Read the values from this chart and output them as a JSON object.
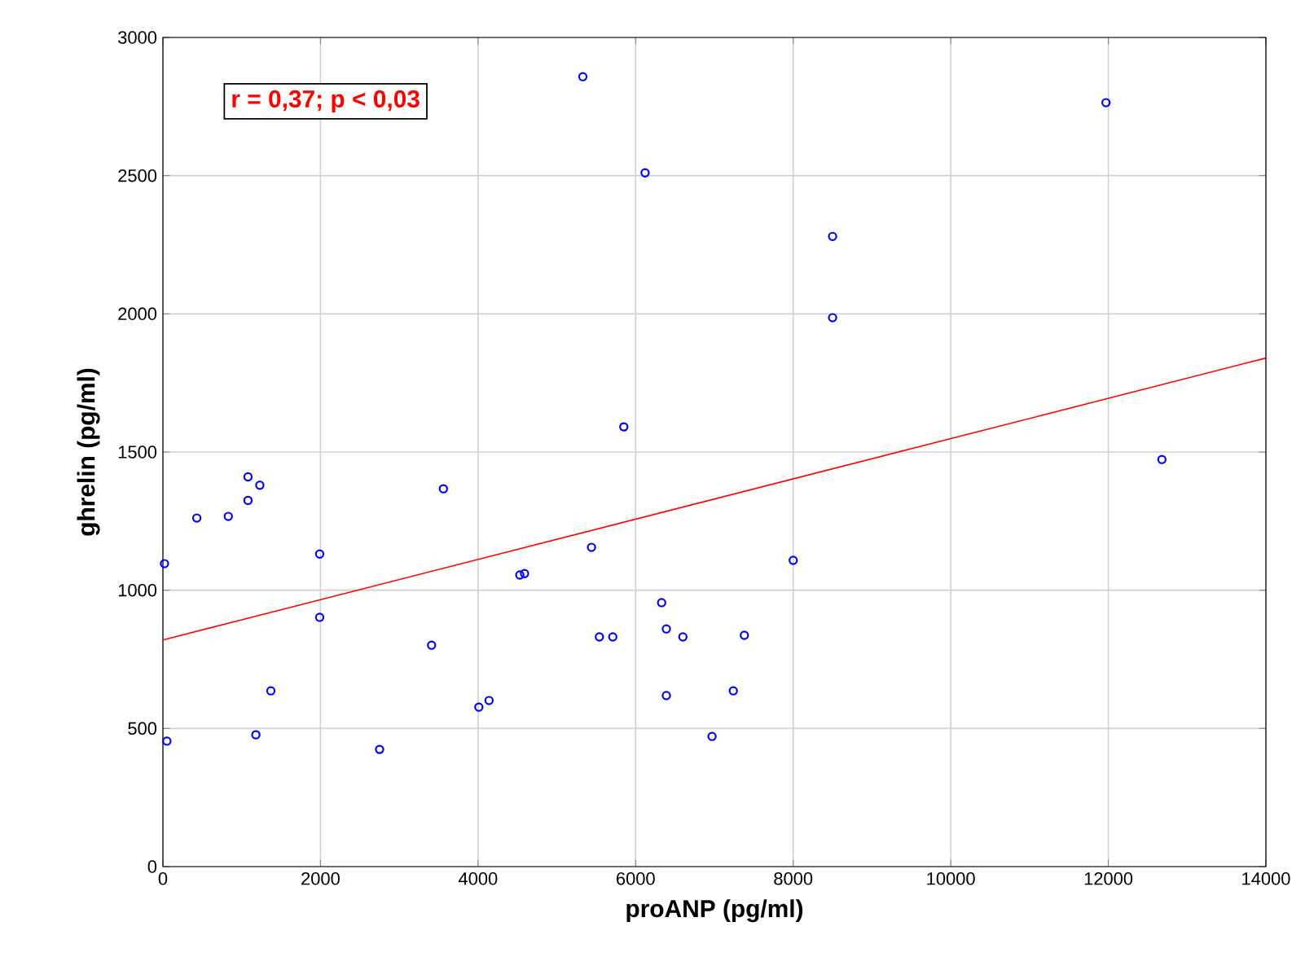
{
  "chart_data": {
    "type": "scatter",
    "xlabel": "proANP (pg/ml)",
    "ylabel": "ghrelin (pg/ml)",
    "xlim": [
      0,
      14000
    ],
    "ylim": [
      0,
      3000
    ],
    "xticks": [
      0,
      2000,
      4000,
      6000,
      8000,
      10000,
      12000,
      14000
    ],
    "yticks": [
      0,
      500,
      1000,
      1500,
      2000,
      2500,
      3000
    ],
    "grid": true,
    "marker": "circle",
    "annotations": [
      "r = 0,37; p < 0,03"
    ],
    "series": [
      {
        "color": "#0000ff",
        "x": [
          20,
          50,
          430,
          830,
          1080,
          1080,
          1230,
          1370,
          1180,
          1990,
          1990,
          2750,
          3410,
          3560,
          4010,
          4140,
          4530,
          4590,
          5330,
          5440,
          5540,
          5710,
          5850,
          6120,
          6330,
          6390,
          6390,
          6600,
          6970,
          7240,
          7380,
          8000,
          8500,
          8500,
          11970,
          12680
        ],
        "values": [
          1096,
          454,
          1261,
          1267,
          1410,
          1325,
          1380,
          636,
          477,
          1131,
          902,
          424,
          801,
          1367,
          577,
          601,
          1055,
          1060,
          2858,
          1155,
          831,
          831,
          1591,
          2510,
          955,
          860,
          619,
          831,
          471,
          636,
          837,
          1108,
          2280,
          1986,
          2764,
          1473
        ]
      },
      {
        "type": "line",
        "color": "#ff0000",
        "marker": "none",
        "x": [
          0,
          14000
        ],
        "values": [
          820,
          1840
        ]
      }
    ]
  }
}
